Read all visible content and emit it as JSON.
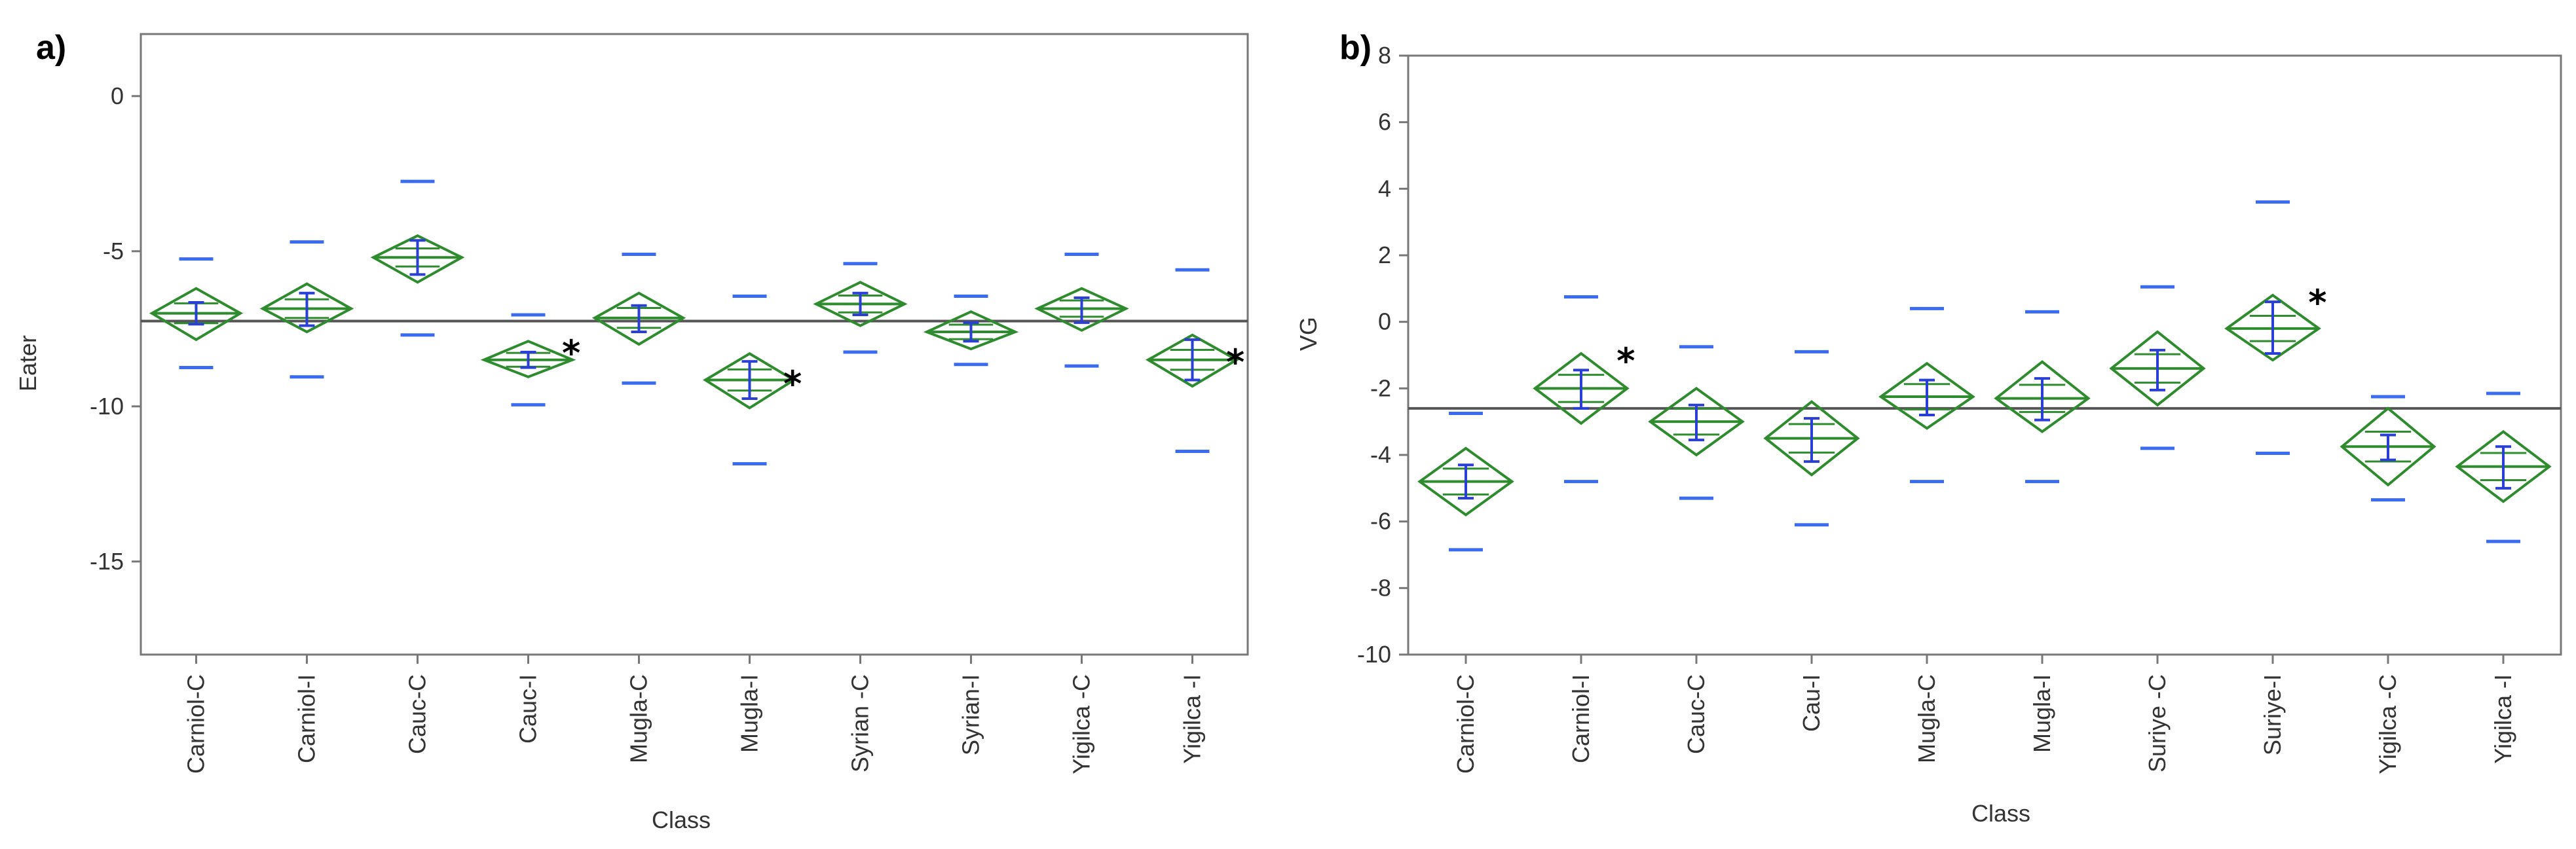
{
  "colors": {
    "diamond": "#2e8b2e",
    "error": "#2a3fd6",
    "quantile": "#3b6cf0",
    "mean_line": "#555555",
    "frame": "#777777"
  },
  "chart_data": [
    {
      "panel": "a)",
      "type": "means-diamonds",
      "ylabel": "Eater",
      "xlabel": "Class",
      "ylim": [
        -18,
        2
      ],
      "yticks": [
        0,
        -5,
        -10,
        -15
      ],
      "grand_mean": -7.25,
      "categories": [
        "Carniol-C",
        "Carniol-I",
        "Cauc-C",
        "Cauc-I",
        "Mugla-C",
        "Mugla-I",
        "Syrian -C",
        "Syrian-I",
        "Yigilca -C",
        "Yigilca -I"
      ],
      "mean": [
        -7.0,
        -6.85,
        -5.2,
        -8.5,
        -7.15,
        -9.15,
        -6.7,
        -7.6,
        -6.85,
        -8.5
      ],
      "ci_low": [
        -7.85,
        -7.6,
        -6.0,
        -9.05,
        -8.0,
        -10.05,
        -7.4,
        -8.15,
        -7.55,
        -9.35
      ],
      "ci_high": [
        -6.2,
        -6.05,
        -4.5,
        -7.9,
        -6.35,
        -8.3,
        -6.0,
        -6.95,
        -6.2,
        -7.7
      ],
      "err_low": [
        -7.35,
        -7.4,
        -5.75,
        -8.75,
        -7.6,
        -9.75,
        -7.05,
        -7.9,
        -7.3,
        -9.15
      ],
      "err_high": [
        -6.65,
        -6.35,
        -4.65,
        -8.25,
        -6.75,
        -8.55,
        -6.35,
        -7.3,
        -6.5,
        -7.85
      ],
      "q_low": [
        -8.75,
        -9.05,
        -7.7,
        -9.95,
        -9.25,
        -11.85,
        -8.25,
        -8.65,
        -8.7,
        -11.45
      ],
      "q_high": [
        -5.25,
        -4.7,
        -2.75,
        -7.05,
        -5.1,
        -6.45,
        -5.4,
        -6.45,
        -5.1,
        -5.6
      ],
      "significance": [
        "",
        "",
        "",
        "*",
        "",
        "*",
        "",
        "",
        "",
        "*"
      ]
    },
    {
      "panel": "b)",
      "type": "means-diamonds",
      "ylabel": "VG",
      "xlabel": "Class",
      "ylim": [
        -10,
        8
      ],
      "yticks": [
        8,
        6,
        4,
        2,
        0,
        -2,
        -4,
        -6,
        -8,
        -10
      ],
      "grand_mean": -2.6,
      "categories": [
        "Carniol-C",
        "Carniol-I",
        "Cauc-C",
        "Cau-I",
        "Mugla-C",
        "Mugla-I",
        "Suriye -C",
        "Suriye-I",
        "Yigilca -C",
        "Yigilca -I"
      ],
      "mean": [
        -4.8,
        -2.0,
        -3.0,
        -3.5,
        -2.25,
        -2.3,
        -1.4,
        -0.2,
        -3.75,
        -4.35
      ],
      "ci_low": [
        -5.8,
        -3.05,
        -4.0,
        -4.6,
        -3.2,
        -3.3,
        -2.5,
        -1.15,
        -4.9,
        -5.4
      ],
      "ci_high": [
        -3.8,
        -0.95,
        -2.0,
        -2.4,
        -1.25,
        -1.2,
        -0.3,
        0.8,
        -2.6,
        -3.3
      ],
      "err_low": [
        -5.3,
        -2.6,
        -3.55,
        -4.2,
        -2.8,
        -2.95,
        -2.05,
        -0.95,
        -4.15,
        -5.0
      ],
      "err_high": [
        -4.3,
        -1.45,
        -2.5,
        -2.9,
        -1.75,
        -1.7,
        -0.85,
        0.6,
        -3.4,
        -3.75
      ],
      "q_low": [
        -6.85,
        -4.8,
        -5.3,
        -6.1,
        -4.8,
        -4.8,
        -3.8,
        -3.95,
        -5.35,
        -6.6
      ],
      "q_high": [
        -2.75,
        0.75,
        -0.75,
        -0.9,
        0.4,
        0.3,
        1.05,
        3.6,
        -2.25,
        -2.15
      ],
      "significance": [
        "",
        "*",
        "",
        "",
        "",
        "",
        "",
        "*",
        "",
        ""
      ]
    }
  ]
}
